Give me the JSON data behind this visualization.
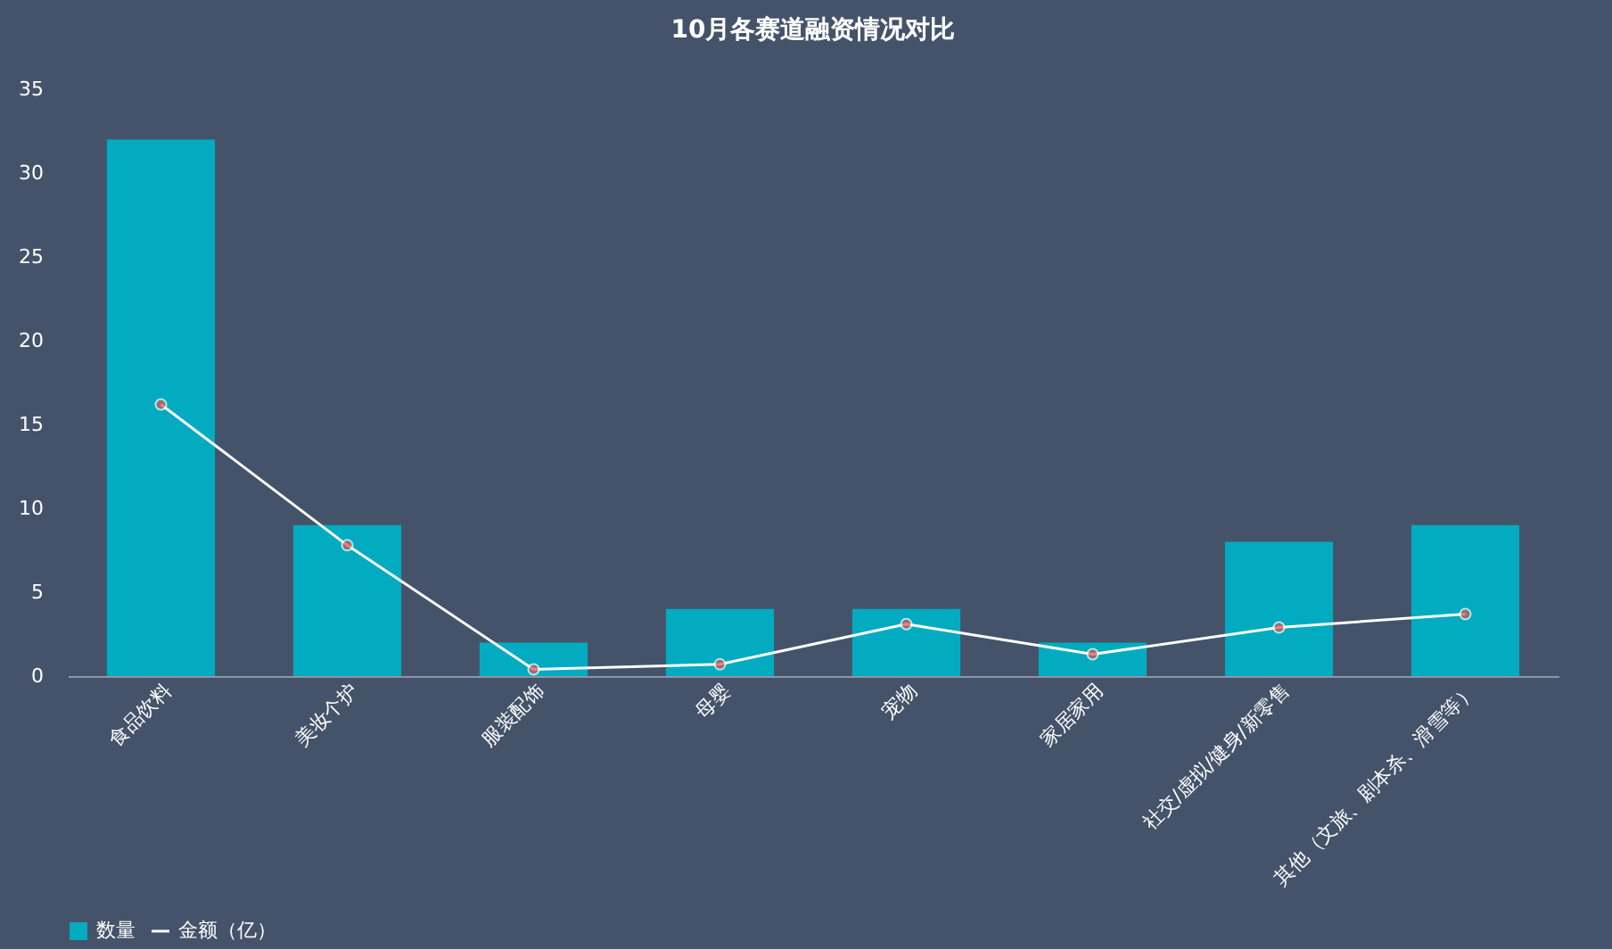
{
  "chart_data": {
    "type": "bar",
    "title": "10月各赛道融资情况对比",
    "categories": [
      "食品饮料",
      "美妆个护",
      "服装配饰",
      "母婴",
      "宠物",
      "家居家用",
      "社交/虚拟/健身/新零售",
      "其他（文旅、剧本杀、滑雪等）"
    ],
    "series": [
      {
        "name": "数量",
        "color": "#02abbf",
        "values": [
          32,
          9,
          2,
          4,
          4,
          2,
          8,
          9
        ]
      },
      {
        "name": "金额（亿）",
        "type": "line",
        "color": "#ffffff",
        "colors": [
          "#d9534f",
          "#d9534f",
          "#d9534f",
          "#d9534f",
          "#d9534f",
          "#d9534f",
          "#d9534f",
          "#d9534f"
        ],
        "marker": "circle",
        "values": [
          16.2,
          7.8,
          0.4,
          0.7,
          3.1,
          1.3,
          2.9,
          3.7
        ]
      }
    ],
    "ylim": [
      0,
      35
    ],
    "yticks": [
      0,
      5,
      10,
      15,
      20,
      25,
      30,
      35
    ],
    "grid": false,
    "legend": "bottom"
  }
}
